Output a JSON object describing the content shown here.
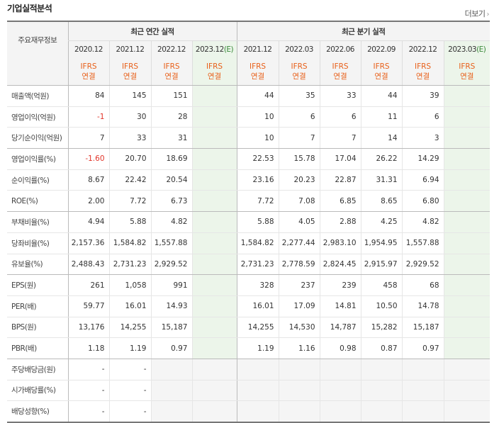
{
  "section_title": "기업실적분석",
  "more_label": "더보기",
  "more_arrow": "›",
  "header": {
    "row_label": "주요재무정보",
    "annual_group": "최근 연간 실적",
    "quarter_group": "최근 분기 실적",
    "annual_periods": [
      "2020.12",
      "2021.12",
      "2022.12",
      "2023.12"
    ],
    "quarter_periods": [
      "2021.12",
      "2022.03",
      "2022.06",
      "2022.09",
      "2022.12",
      "2023.03"
    ],
    "estimate_mark": "(E)",
    "ifrs_line1": "IFRS",
    "ifrs_line2": "연결"
  },
  "rows": [
    {
      "label": "매출액(억원)",
      "annual": [
        "84",
        "145",
        "151",
        ""
      ],
      "quarter": [
        "44",
        "35",
        "33",
        "44",
        "39",
        ""
      ]
    },
    {
      "label": "영업이익(억원)",
      "annual": [
        "-1",
        "30",
        "28",
        ""
      ],
      "quarter": [
        "10",
        "6",
        "6",
        "11",
        "6",
        ""
      ]
    },
    {
      "label": "당기순이익(억원)",
      "annual": [
        "7",
        "33",
        "31",
        ""
      ],
      "quarter": [
        "10",
        "7",
        "7",
        "14",
        "3",
        ""
      ]
    },
    {
      "label": "영업이익률(%)",
      "annual": [
        "-1.60",
        "20.70",
        "18.69",
        ""
      ],
      "quarter": [
        "22.53",
        "15.78",
        "17.04",
        "26.22",
        "14.29",
        ""
      ]
    },
    {
      "label": "순이익률(%)",
      "annual": [
        "8.67",
        "22.42",
        "20.54",
        ""
      ],
      "quarter": [
        "23.16",
        "20.23",
        "22.87",
        "31.31",
        "6.94",
        ""
      ]
    },
    {
      "label": "ROE(%)",
      "annual": [
        "2.00",
        "7.72",
        "6.73",
        ""
      ],
      "quarter": [
        "7.72",
        "7.08",
        "6.85",
        "8.65",
        "6.80",
        ""
      ]
    },
    {
      "label": "부채비율(%)",
      "annual": [
        "4.94",
        "5.88",
        "4.82",
        ""
      ],
      "quarter": [
        "5.88",
        "4.05",
        "2.88",
        "4.25",
        "4.82",
        ""
      ]
    },
    {
      "label": "당좌비율(%)",
      "annual": [
        "2,157.36",
        "1,584.82",
        "1,557.88",
        ""
      ],
      "quarter": [
        "1,584.82",
        "2,277.44",
        "2,983.10",
        "1,954.95",
        "1,557.88",
        ""
      ]
    },
    {
      "label": "유보율(%)",
      "annual": [
        "2,488.43",
        "2,731.23",
        "2,929.52",
        ""
      ],
      "quarter": [
        "2,731.23",
        "2,778.59",
        "2,824.45",
        "2,915.97",
        "2,929.52",
        ""
      ]
    },
    {
      "label": "EPS(원)",
      "annual": [
        "261",
        "1,058",
        "991",
        ""
      ],
      "quarter": [
        "328",
        "237",
        "239",
        "458",
        "68",
        ""
      ]
    },
    {
      "label": "PER(배)",
      "annual": [
        "59.77",
        "16.01",
        "14.93",
        ""
      ],
      "quarter": [
        "16.01",
        "17.09",
        "14.81",
        "10.50",
        "14.78",
        ""
      ]
    },
    {
      "label": "BPS(원)",
      "annual": [
        "13,176",
        "14,255",
        "15,187",
        ""
      ],
      "quarter": [
        "14,255",
        "14,530",
        "14,787",
        "15,282",
        "15,187",
        ""
      ]
    },
    {
      "label": "PBR(배)",
      "annual": [
        "1.18",
        "1.19",
        "0.97",
        ""
      ],
      "quarter": [
        "1.19",
        "1.16",
        "0.98",
        "0.87",
        "0.97",
        ""
      ]
    },
    {
      "label": "주당배당금(원)",
      "annual": [
        "-",
        "-",
        "",
        ""
      ],
      "quarter": [
        "",
        "",
        "",
        "",
        "",
        ""
      ]
    },
    {
      "label": "시가배당률(%)",
      "annual": [
        "-",
        "-",
        "",
        ""
      ],
      "quarter": [
        "",
        "",
        "",
        "",
        "",
        ""
      ]
    },
    {
      "label": "배당성향(%)",
      "annual": [
        "-",
        "-",
        "",
        ""
      ],
      "quarter": [
        "",
        "",
        "",
        "",
        "",
        ""
      ]
    }
  ],
  "colors": {
    "ifrs_text": "#e8601a",
    "negative_value": "#e2352a",
    "estimate_bg": "#ecf5ea",
    "header_bg": "#f4f4f4"
  }
}
